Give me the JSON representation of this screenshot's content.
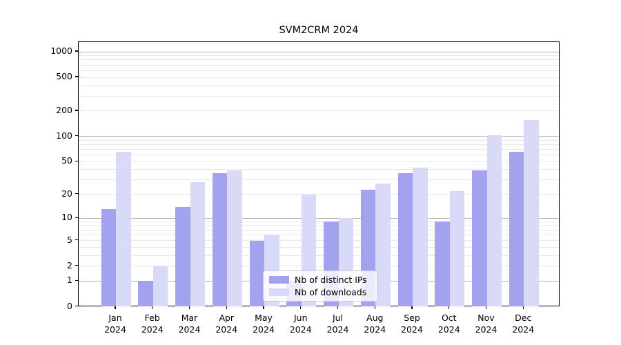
{
  "title": "SVM2CRM 2024",
  "chart_data": {
    "type": "bar",
    "title": "SVM2CRM 2024",
    "xlabel": "",
    "ylabel": "",
    "scale": "log1p",
    "ylim": [
      0,
      1300
    ],
    "grid": "on",
    "categories": [
      "Jan",
      "Feb",
      "Mar",
      "Apr",
      "May",
      "Jun",
      "Jul",
      "Aug",
      "Sep",
      "Oct",
      "Nov",
      "Dec"
    ],
    "year": "2024",
    "series": [
      {
        "name": "Nb of distinct IPs",
        "color": "#a2a2ef",
        "values": [
          13,
          1,
          14,
          36,
          5,
          1,
          9,
          23,
          36,
          9,
          39,
          66
        ]
      },
      {
        "name": "Nb of downloads",
        "color": "#d9d9f8",
        "values": [
          65,
          2,
          28,
          39,
          6,
          20,
          10,
          27,
          42,
          22,
          103,
          155
        ]
      }
    ],
    "y_ticks": [
      0,
      1,
      2,
      5,
      10,
      20,
      50,
      100,
      200,
      500,
      1000
    ],
    "grid_major": [
      1,
      10,
      100,
      1000
    ],
    "grid_minor": [
      2,
      3,
      4,
      5,
      6,
      7,
      8,
      9,
      20,
      30,
      40,
      50,
      60,
      70,
      80,
      90,
      200,
      300,
      400,
      500,
      600,
      700,
      800,
      900
    ],
    "colors": {
      "grid_major": "#b4b4b4",
      "grid_minor": "#e8e8e8",
      "spine": "#000000"
    },
    "legend": {
      "position": "lower-center",
      "entries": [
        "Nb of distinct IPs",
        "Nb of downloads"
      ]
    }
  }
}
